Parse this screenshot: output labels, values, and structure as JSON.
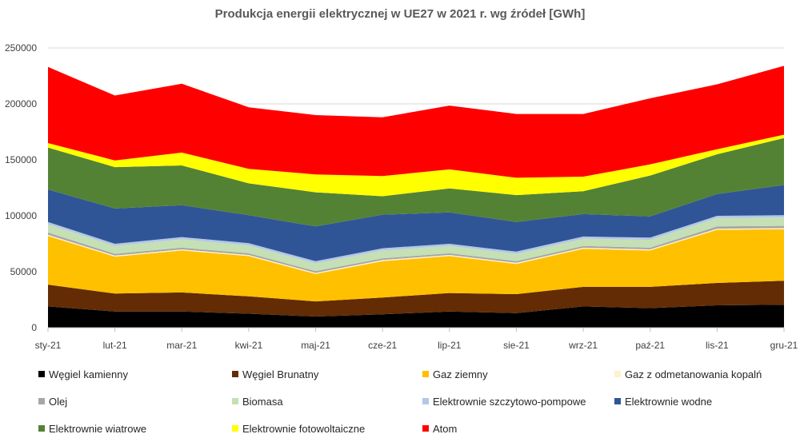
{
  "chart_data": {
    "type": "area",
    "stacked": true,
    "title": "Produkcja energii elektrycznej w UE27 w 2021 r. wg źródeł [GWh]",
    "xlabel": "",
    "ylabel": "",
    "ylim": [
      0,
      250000
    ],
    "yticks": [
      "0",
      "50000",
      "100000",
      "150000",
      "200000",
      "250000"
    ],
    "grid": true,
    "legend_position": "bottom",
    "categories": [
      "sty-21",
      "lut-21",
      "mar-21",
      "kwi-21",
      "maj-21",
      "cze-21",
      "lip-21",
      "sie-21",
      "wrz-21",
      "paź-21",
      "lis-21",
      "gru-21"
    ],
    "series": [
      {
        "name": "Węgiel kamienny",
        "color": "#000000",
        "values": [
          19000,
          14500,
          14500,
          12500,
          10000,
          12000,
          14500,
          13000,
          19000,
          17500,
          20000,
          20500
        ]
      },
      {
        "name": "Węgiel Brunatny",
        "color": "#632c04",
        "values": [
          19500,
          16000,
          17000,
          15500,
          13500,
          15000,
          16500,
          17000,
          17500,
          19000,
          20000,
          21500
        ]
      },
      {
        "name": "Gaz  ziemny",
        "color": "#ffc000",
        "values": [
          43500,
          33000,
          37500,
          36000,
          24500,
          32500,
          33000,
          27000,
          34000,
          32500,
          47500,
          46000
        ]
      },
      {
        "name": "Gaz z odmetanowania kopalń",
        "color": "#fff2cc",
        "values": [
          1000,
          1000,
          1000,
          1000,
          1000,
          1000,
          1000,
          1000,
          1000,
          1000,
          1000,
          1000
        ]
      },
      {
        "name": "Olej",
        "color": "#a6a6a6",
        "values": [
          2000,
          1500,
          1500,
          1500,
          1500,
          1500,
          1500,
          1500,
          1500,
          1500,
          2000,
          2000
        ]
      },
      {
        "name": "Biomasa",
        "color": "#c5e0b4",
        "values": [
          7500,
          7000,
          7500,
          7000,
          7000,
          7000,
          6500,
          6500,
          6500,
          7000,
          7500,
          7500
        ]
      },
      {
        "name": "Elektrownie szczytowo-pompowe",
        "color": "#b4c7e7",
        "values": [
          2000,
          2000,
          2000,
          2000,
          2000,
          2000,
          2000,
          2000,
          2000,
          2000,
          2000,
          2000
        ]
      },
      {
        "name": "Elektrownie wodne",
        "color": "#2f5597",
        "values": [
          29000,
          31500,
          28500,
          25000,
          31000,
          30000,
          28000,
          26500,
          20000,
          19000,
          19500,
          27000
        ]
      },
      {
        "name": "Elektrownie wiatrowe",
        "color": "#548235",
        "values": [
          37500,
          37000,
          35500,
          28500,
          30500,
          16500,
          21500,
          24000,
          20500,
          36500,
          35500,
          42000
        ]
      },
      {
        "name": "Elektrownie fotowoltaiczne",
        "color": "#ffff00",
        "values": [
          4000,
          6000,
          11500,
          13000,
          16000,
          18000,
          17000,
          15500,
          13000,
          10000,
          4500,
          3000
        ]
      },
      {
        "name": "Atom",
        "color": "#ff0000",
        "values": [
          68000,
          58000,
          61500,
          55000,
          53000,
          52500,
          57000,
          57000,
          56000,
          59000,
          58000,
          61500
        ]
      }
    ]
  }
}
